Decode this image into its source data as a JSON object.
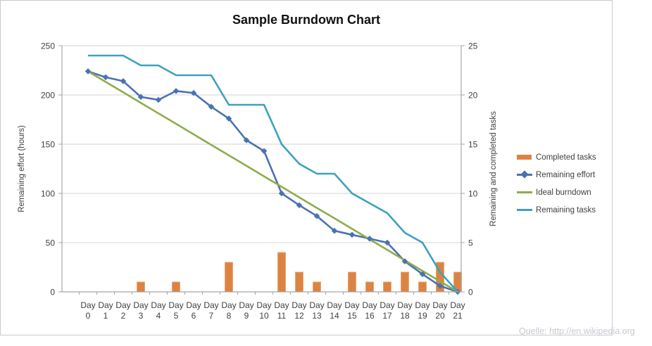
{
  "watermark": "Quelle: http://en.wikipedia.org",
  "colors": {
    "completed_tasks": "#dc8344",
    "completed_tasks_border": "#e9a66e",
    "remaining_effort": "#4a72b0",
    "ideal_burndown": "#8eac4b",
    "remaining_tasks": "#3ea1bd",
    "axis": "#a6a6a6",
    "gridline": "#d3d3d3",
    "text": "#3f3f3f",
    "title_text": "#111111",
    "watermark_text": "#c7c7d1",
    "frame_border": "#c9c9c9"
  },
  "chart_data": {
    "type": "combo",
    "title": "Sample Burndown Chart",
    "categories": [
      "Day 0",
      "Day 1",
      "Day 2",
      "Day 3",
      "Day 4",
      "Day 5",
      "Day 6",
      "Day 7",
      "Day 8",
      "Day 9",
      "Day 10",
      "Day 11",
      "Day 12",
      "Day 13",
      "Day 14",
      "Day 15",
      "Day 16",
      "Day 17",
      "Day 18",
      "Day 19",
      "Day 20",
      "Day 21"
    ],
    "left_axis": {
      "label": "Remaining effort (hours)",
      "min": 0,
      "max": 250,
      "step": 50,
      "ticks": [
        0,
        50,
        100,
        150,
        200,
        250
      ]
    },
    "right_axis": {
      "label": "Remaining and completed tasks",
      "min": 0,
      "max": 25,
      "step": 5,
      "ticks": [
        0,
        5,
        10,
        15,
        20,
        25
      ]
    },
    "gridlines": "horizontal",
    "legend_position": "right",
    "series": [
      {
        "name": "Completed tasks",
        "type": "bar",
        "axis": "right",
        "values": [
          0,
          0,
          0,
          1,
          0,
          1,
          0,
          0,
          3,
          0,
          0,
          4,
          2,
          1,
          0,
          2,
          1,
          1,
          2,
          1,
          3,
          2
        ]
      },
      {
        "name": "Remaining effort",
        "type": "line",
        "marker": "diamond",
        "axis": "left",
        "values": [
          224,
          218,
          214,
          198,
          195,
          204,
          202,
          188,
          176,
          154,
          143,
          100,
          88,
          77,
          62,
          58,
          54,
          50,
          31,
          18,
          6,
          0
        ]
      },
      {
        "name": "Ideal burndown",
        "type": "line",
        "axis": "left",
        "values": [
          224,
          213.3,
          202.7,
          192,
          181.3,
          170.7,
          160,
          149.3,
          138.7,
          128,
          117.3,
          106.7,
          96,
          85.3,
          74.7,
          64,
          53.3,
          42.7,
          32,
          21.3,
          10.7,
          0
        ]
      },
      {
        "name": "Remaining tasks",
        "type": "line",
        "axis": "right",
        "values": [
          24,
          24,
          24,
          23,
          23,
          22,
          22,
          22,
          19,
          19,
          19,
          15,
          13,
          12,
          12,
          10,
          9,
          8,
          6,
          5,
          2,
          0
        ]
      }
    ]
  }
}
